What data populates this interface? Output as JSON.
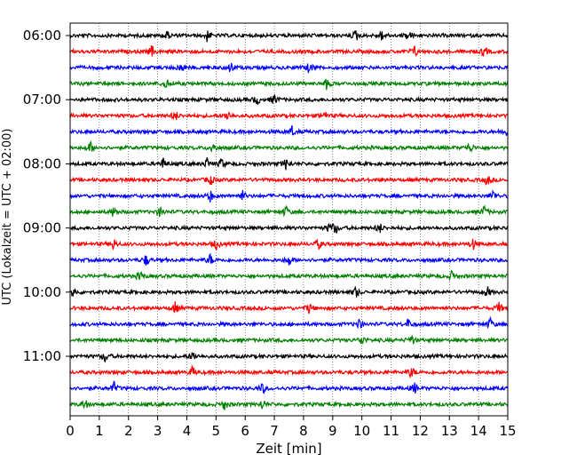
{
  "chart_data": {
    "type": "line",
    "subtype": "helicorder",
    "xlabel": "Zeit  [min]",
    "ylabel": "UTC (Lokalzeit = UTC + 02:00)",
    "xlim": [
      0,
      15
    ],
    "x_ticks": [
      0,
      1,
      2,
      3,
      4,
      5,
      6,
      7,
      8,
      9,
      10,
      11,
      12,
      13,
      14,
      15
    ],
    "x_tick_labels": [
      "0",
      "1",
      "2",
      "3",
      "4",
      "5",
      "6",
      "7",
      "8",
      "9",
      "10",
      "11",
      "12",
      "13",
      "14",
      "15"
    ],
    "y_tick_labels": [
      "06:00",
      "07:00",
      "08:00",
      "09:00",
      "10:00",
      "11:00"
    ],
    "vertical_grid": "dotted",
    "trace_interval_min": 15,
    "trace_colors": [
      "#000000",
      "#ff0000",
      "#0000ff",
      "#008000"
    ],
    "trace_start_times": [
      "06:00",
      "06:15",
      "06:30",
      "06:45",
      "07:00",
      "07:15",
      "07:30",
      "07:45",
      "08:00",
      "08:15",
      "08:30",
      "08:45",
      "09:00",
      "09:15",
      "09:30",
      "09:45",
      "10:00",
      "10:15",
      "10:30",
      "10:45",
      "11:00",
      "11:15",
      "11:30",
      "11:45"
    ],
    "trace_events_min": [
      [
        3.3,
        4.7,
        9.8,
        10.7,
        11.6
      ],
      [
        2.8,
        11.8,
        14.2
      ],
      [
        3.8,
        5.5,
        8.2
      ],
      [
        3.3,
        8.8
      ],
      [
        6.4,
        7.0
      ],
      [
        3.6,
        5.4,
        8.7
      ],
      [
        7.6,
        14.9
      ],
      [
        0.7,
        4.9,
        13.7
      ],
      [
        3.2,
        4.7,
        5.2,
        7.4
      ],
      [
        4.8,
        14.3
      ],
      [
        4.8,
        5.9,
        14.5
      ],
      [
        1.5,
        3.1,
        7.4,
        14.2
      ],
      [
        8.9,
        9.1,
        10.6
      ],
      [
        1.5,
        5.0,
        8.5,
        13.8
      ],
      [
        2.6,
        4.8,
        7.5
      ],
      [
        2.4,
        13.1
      ],
      [
        0.1,
        9.8,
        14.3
      ],
      [
        3.6,
        8.2,
        14.7
      ],
      [
        9.9,
        11.6,
        14.4
      ],
      [
        10.0,
        11.7
      ],
      [
        1.2,
        4.2
      ],
      [
        4.2,
        11.7
      ],
      [
        1.5,
        6.6,
        11.8
      ],
      [
        0.5,
        5.3,
        6.6
      ]
    ]
  }
}
